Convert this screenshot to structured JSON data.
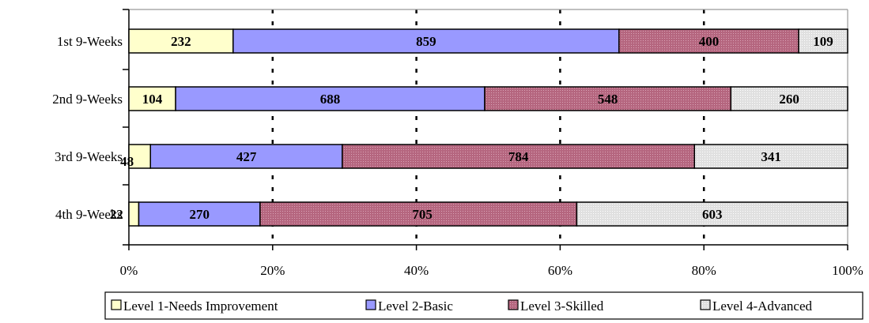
{
  "chart_data": {
    "type": "bar",
    "orientation": "horizontal",
    "stacked": "percent",
    "categories": [
      "1st 9-Weeks",
      "2nd 9-Weeks",
      "3rd 9-Weeks",
      "4th 9-Weeks"
    ],
    "series": [
      {
        "name": "Level 1-Needs Improvement",
        "values": [
          232,
          104,
          48,
          22
        ],
        "color": "#ffffcc"
      },
      {
        "name": "Level 2-Basic",
        "values": [
          859,
          688,
          427,
          270
        ],
        "color": "#9999ff"
      },
      {
        "name": "Level 3-Skilled",
        "values": [
          400,
          548,
          784,
          705
        ],
        "color": "#b5667f"
      },
      {
        "name": "Level 4-Advanced",
        "values": [
          109,
          260,
          341,
          603
        ],
        "color": "#e0e0e0"
      }
    ],
    "xticks": [
      "0%",
      "20%",
      "40%",
      "60%",
      "80%",
      "100%"
    ],
    "xlim": [
      0,
      100
    ],
    "grid": "vertical-dashed",
    "legend_position": "bottom"
  }
}
